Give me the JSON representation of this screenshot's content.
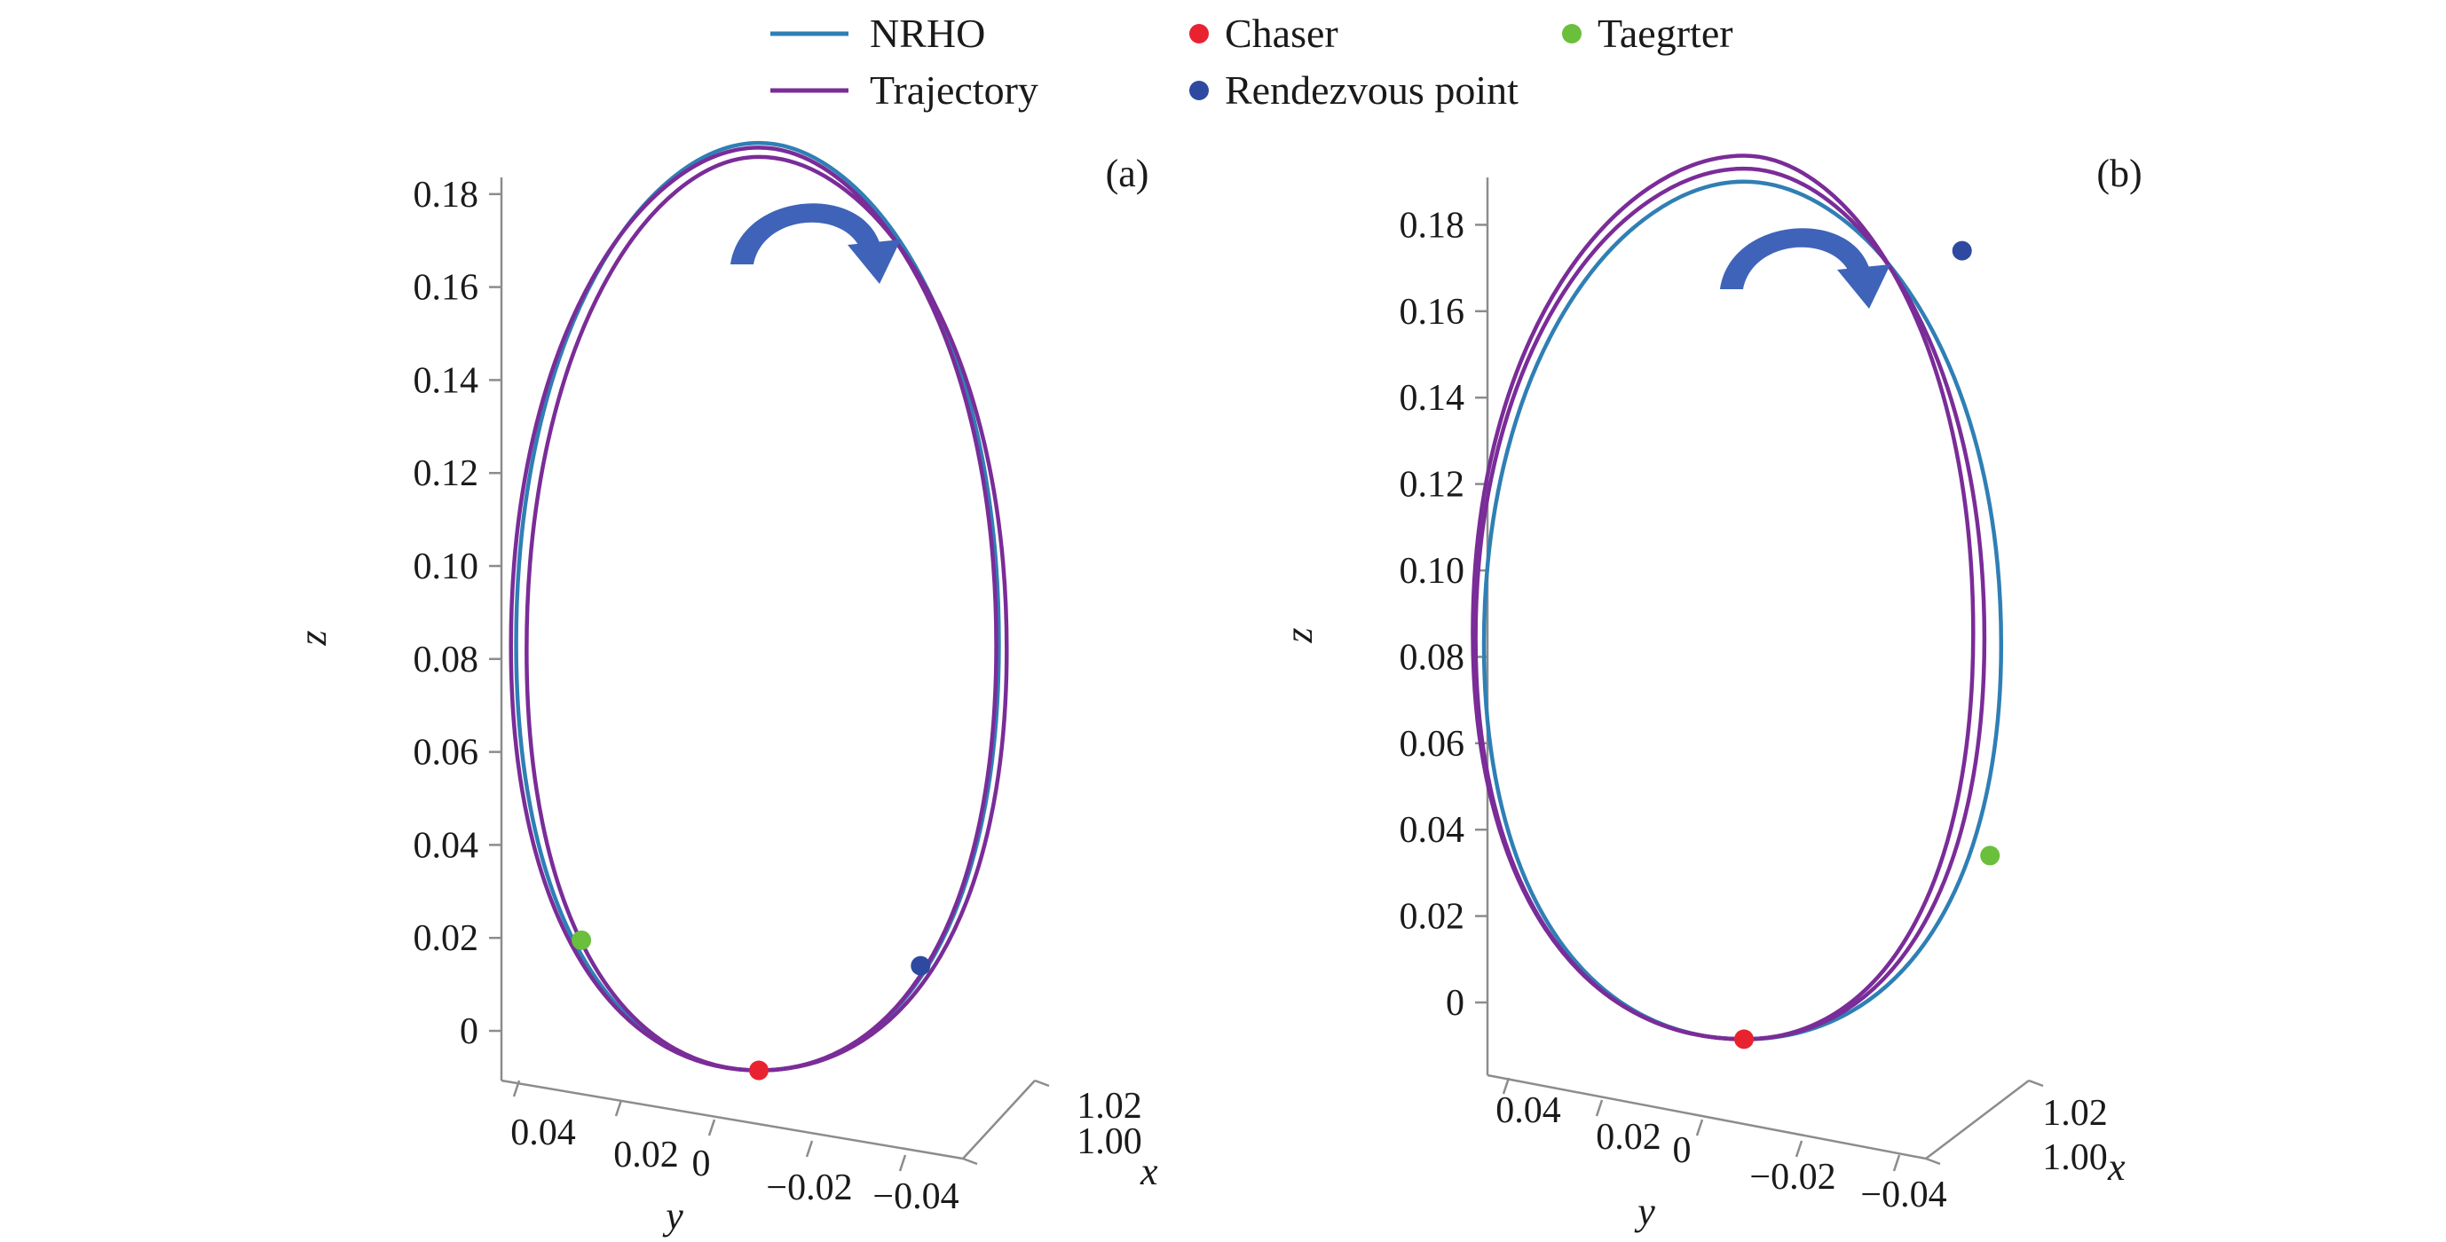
{
  "legend": [
    {
      "label": "NRHO",
      "kind": "line",
      "color": "#2f7fb5"
    },
    {
      "label": "Chaser",
      "kind": "dot",
      "color": "#e8232f"
    },
    {
      "label": "Taegrter",
      "kind": "dot",
      "color": "#6abf3c"
    },
    {
      "label": "Trajectory",
      "kind": "line",
      "color": "#7a2c98"
    },
    {
      "label": "Rendezvous point",
      "kind": "dot",
      "color": "#2d4aa0"
    }
  ],
  "chart_data": [
    {
      "type": "line",
      "panel_label": "(a)",
      "projection": "3d",
      "zlabel": "z",
      "ylabel": "y",
      "xlabel": "x",
      "zlim": [
        -0.01,
        0.185
      ],
      "z_ticks": [
        0,
        0.02,
        0.04,
        0.06,
        0.08,
        0.1,
        0.12,
        0.14,
        0.16,
        0.18
      ],
      "z_tick_labels": [
        "0",
        "0.02",
        "0.04",
        "0.06",
        "0.08",
        "0.10",
        "0.12",
        "0.14",
        "0.16",
        "0.18"
      ],
      "y_tick_labels": [
        "0.04",
        "0.02",
        "0",
        "−0.02",
        "−0.04"
      ],
      "x_tick_labels": [
        "1.00",
        "1.02"
      ],
      "series": [
        {
          "name": "NRHO",
          "color": "#2f7fb5",
          "loops": [
            {
              "z_bottom": -0.0085,
              "z_top": 0.191,
              "y_left": 0.0465,
              "y_right": -0.046
            }
          ]
        },
        {
          "name": "Trajectory",
          "color": "#7a2c98",
          "loops": [
            {
              "z_bottom": -0.0085,
              "z_top": 0.19,
              "y_left": 0.0475,
              "y_right": -0.0455
            },
            {
              "z_bottom": -0.0085,
              "z_top": 0.188,
              "y_left": 0.0445,
              "y_right": -0.0475
            }
          ]
        }
      ],
      "points": [
        {
          "name": "Chaser",
          "color": "#e8232f",
          "z": -0.0085,
          "y": 0.0
        },
        {
          "name": "Taegrter",
          "color": "#6abf3c",
          "z": 0.0195,
          "y": 0.034
        },
        {
          "name": "Rendezvous point",
          "color": "#2d4aa0",
          "z": 0.014,
          "y": -0.031
        }
      ],
      "rotation_arrow": "clockwise"
    },
    {
      "type": "line",
      "panel_label": "(b)",
      "projection": "3d",
      "zlabel": "z",
      "ylabel": "y",
      "xlabel": "x",
      "zlim": [
        -0.01,
        0.185
      ],
      "z_ticks": [
        0,
        0.02,
        0.04,
        0.06,
        0.08,
        0.1,
        0.12,
        0.14,
        0.16,
        0.18
      ],
      "z_tick_labels": [
        "0",
        "0.02",
        "0.04",
        "0.06",
        "0.08",
        "0.10",
        "0.12",
        "0.14",
        "0.16",
        "0.18"
      ],
      "y_tick_labels": [
        "0.04",
        "0.02",
        "0",
        "−0.02",
        "−0.04"
      ],
      "x_tick_labels": [
        "1.00",
        "1.02"
      ],
      "series": [
        {
          "name": "NRHO",
          "color": "#2f7fb5",
          "loops": [
            {
              "z_bottom": -0.0085,
              "z_top": 0.19,
              "y_left": 0.0465,
              "y_right": -0.046
            }
          ]
        },
        {
          "name": "Trajectory",
          "color": "#7a2c98",
          "loops": [
            {
              "z_bottom": -0.0085,
              "z_top": 0.193,
              "y_left": 0.048,
              "y_right": -0.043
            },
            {
              "z_bottom": -0.0085,
              "z_top": 0.196,
              "y_left": 0.0485,
              "y_right": -0.041
            }
          ]
        }
      ],
      "points": [
        {
          "name": "Chaser",
          "color": "#e8232f",
          "z": -0.0085,
          "y": 0.0
        },
        {
          "name": "Taegrter",
          "color": "#6abf3c",
          "z": 0.034,
          "y": -0.044
        },
        {
          "name": "Rendezvous point",
          "color": "#2d4aa0",
          "z": 0.174,
          "y": -0.039
        }
      ],
      "rotation_arrow": "clockwise"
    }
  ]
}
